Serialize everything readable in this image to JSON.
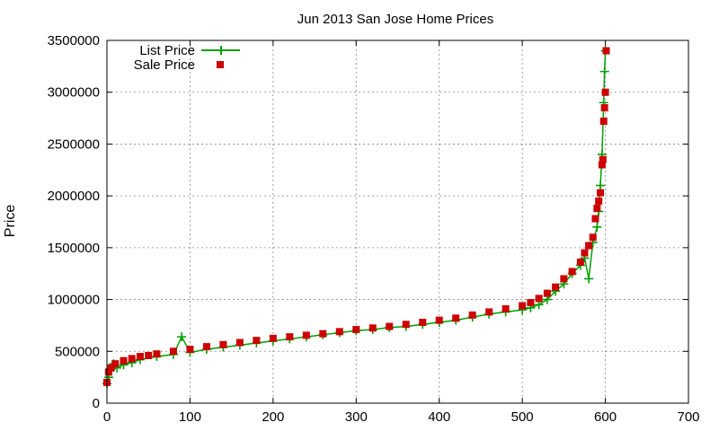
{
  "chart_data": {
    "type": "scatter",
    "title": "Jun 2013 San Jose Home Prices",
    "xlabel": "",
    "ylabel": "Price",
    "xlim": [
      0,
      700
    ],
    "ylim": [
      0,
      3500000
    ],
    "xticks": [
      0,
      100,
      200,
      300,
      400,
      500,
      600,
      700
    ],
    "yticks": [
      0,
      500000,
      1000000,
      1500000,
      2000000,
      2500000,
      3000000,
      3500000
    ],
    "grid": true,
    "legend_position": "top-left",
    "series": [
      {
        "name": "List Price",
        "style": "line+plus-markers",
        "color": "#00a000",
        "x": [
          0,
          2,
          5,
          8,
          12,
          20,
          30,
          40,
          60,
          80,
          90,
          100,
          120,
          140,
          160,
          180,
          200,
          220,
          240,
          260,
          280,
          300,
          320,
          340,
          360,
          380,
          400,
          420,
          440,
          460,
          480,
          500,
          510,
          520,
          530,
          540,
          550,
          560,
          570,
          575,
          580,
          585,
          590,
          592,
          594,
          596,
          598,
          599,
          600
        ],
        "y": [
          190000,
          250000,
          330000,
          380000,
          340000,
          370000,
          390000,
          420000,
          450000,
          470000,
          640000,
          490000,
          520000,
          540000,
          560000,
          580000,
          600000,
          620000,
          640000,
          660000,
          680000,
          700000,
          710000,
          730000,
          740000,
          760000,
          780000,
          800000,
          830000,
          860000,
          880000,
          900000,
          920000,
          950000,
          1000000,
          1080000,
          1150000,
          1250000,
          1330000,
          1400000,
          1200000,
          1550000,
          1700000,
          1850000,
          2100000,
          2400000,
          2900000,
          3200000,
          3400000
        ]
      },
      {
        "name": "Sale Price",
        "style": "square-markers",
        "color": "#cc0000",
        "x": [
          0,
          2,
          5,
          10,
          20,
          30,
          40,
          50,
          60,
          80,
          100,
          120,
          140,
          160,
          180,
          200,
          220,
          240,
          260,
          280,
          300,
          320,
          340,
          360,
          380,
          400,
          420,
          440,
          460,
          480,
          500,
          510,
          520,
          530,
          540,
          550,
          560,
          570,
          575,
          580,
          585,
          588,
          590,
          592,
          594,
          596,
          597,
          598,
          599,
          600
        ],
        "y": [
          200000,
          300000,
          340000,
          380000,
          410000,
          430000,
          450000,
          460000,
          475000,
          500000,
          520000,
          545000,
          565000,
          585000,
          605000,
          625000,
          640000,
          655000,
          670000,
          690000,
          710000,
          725000,
          740000,
          760000,
          780000,
          800000,
          820000,
          850000,
          880000,
          910000,
          940000,
          970000,
          1010000,
          1060000,
          1120000,
          1200000,
          1270000,
          1360000,
          1450000,
          1520000,
          1600000,
          1780000,
          1880000,
          1950000,
          2030000,
          2300000,
          2350000,
          2720000,
          2850000,
          3000000
        ]
      }
    ],
    "extra_points": [
      {
        "series": "Sale Price",
        "x": 601,
        "y": 3400000
      }
    ]
  }
}
